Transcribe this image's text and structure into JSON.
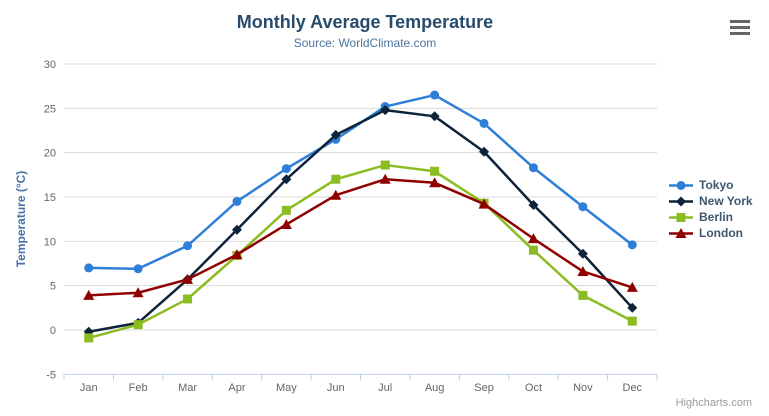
{
  "header": {
    "title": "Monthly Average Temperature",
    "subtitle": "Source: WorldClimate.com"
  },
  "credits": {
    "label": "Highcharts.com"
  },
  "context_menu": {
    "icon": "hamburger-menu-icon"
  },
  "chart_data": {
    "type": "line",
    "title": "Monthly Average Temperature",
    "subtitle": "Source: WorldClimate.com",
    "xlabel": "",
    "ylabel": "Temperature (°C)",
    "ylim": [
      -5,
      30
    ],
    "ytick_interval": 5,
    "grid": true,
    "legend_position": "right",
    "categories": [
      "Jan",
      "Feb",
      "Mar",
      "Apr",
      "May",
      "Jun",
      "Jul",
      "Aug",
      "Sep",
      "Oct",
      "Nov",
      "Dec"
    ],
    "series": [
      {
        "name": "Tokyo",
        "color": "#2f7ed8",
        "marker": "circle",
        "values": [
          7.0,
          6.9,
          9.5,
          14.5,
          18.2,
          21.5,
          25.2,
          26.5,
          23.3,
          18.3,
          13.9,
          9.6
        ]
      },
      {
        "name": "New York",
        "color": "#0d233a",
        "marker": "diamond",
        "values": [
          -0.2,
          0.8,
          5.7,
          11.3,
          17.0,
          22.0,
          24.8,
          24.1,
          20.1,
          14.1,
          8.6,
          2.5
        ]
      },
      {
        "name": "Berlin",
        "color": "#8bbc21",
        "marker": "square",
        "values": [
          -0.9,
          0.6,
          3.5,
          8.4,
          13.5,
          17.0,
          18.6,
          17.9,
          14.3,
          9.0,
          3.9,
          1.0
        ]
      },
      {
        "name": "London",
        "color": "#910000",
        "marker": "triangle",
        "values": [
          3.9,
          4.2,
          5.7,
          8.5,
          11.9,
          15.2,
          17.0,
          16.6,
          14.2,
          10.3,
          6.6,
          4.8
        ]
      }
    ],
    "axis_colors": {
      "grid_line": "#d8d8d8",
      "axis_line": "#c0d0e0",
      "label_color": "#666666",
      "y_title_color": "#4572a7"
    }
  }
}
